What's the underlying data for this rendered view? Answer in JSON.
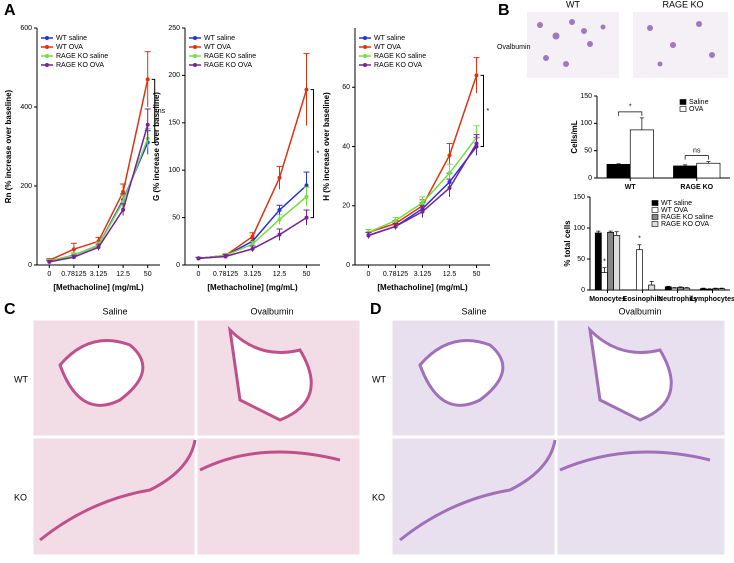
{
  "panel_labels": [
    "A",
    "B",
    "C",
    "D"
  ],
  "micrograph_labels": {
    "b_columns": [
      "WT",
      "RAGE KO"
    ],
    "b_row": "Ovalbumin",
    "c_columns": [
      "Saline",
      "Ovalbumin"
    ],
    "c_rows": [
      "WT",
      "KO"
    ],
    "d_columns": [
      "Saline",
      "Ovalbumin"
    ],
    "d_rows": [
      "WT",
      "KO"
    ]
  },
  "chart_data": [
    {
      "type": "line",
      "y_label": "Rn (% increase over baseline)",
      "x_label": "[Methacholine] (mg/mL)",
      "categories": [
        "0",
        "0.78125",
        "3.125",
        "12.5",
        "50"
      ],
      "ylim": [
        0,
        600
      ],
      "yticks": [
        0,
        200,
        400,
        600
      ],
      "series": [
        {
          "name": "WT saline",
          "color": "#2233dd",
          "values": [
            10,
            25,
            50,
            165,
            310
          ],
          "errors": [
            3,
            5,
            8,
            15,
            30
          ]
        },
        {
          "name": "WT OVA",
          "color": "#dd3311",
          "values": [
            12,
            40,
            60,
            185,
            470
          ],
          "errors": [
            4,
            15,
            10,
            20,
            70
          ]
        },
        {
          "name": "RAGE KO saline",
          "color": "#77dd44",
          "values": [
            10,
            25,
            50,
            160,
            320
          ],
          "errors": [
            3,
            5,
            8,
            15,
            25
          ]
        },
        {
          "name": "RAGE KO OVA",
          "color": "#772299",
          "values": [
            8,
            20,
            45,
            140,
            355
          ],
          "errors": [
            3,
            5,
            8,
            15,
            40
          ]
        }
      ],
      "annotations": [
        "ns"
      ]
    },
    {
      "type": "line",
      "y_label": "G (% increase over baseline)",
      "x_label": "[Methacholine] (mg/mL)",
      "categories": [
        "0",
        "0.78125",
        "3.125",
        "12.5",
        "50"
      ],
      "ylim": [
        0,
        250
      ],
      "yticks": [
        0,
        50,
        100,
        150,
        200,
        250
      ],
      "series": [
        {
          "name": "WT saline",
          "color": "#2233dd",
          "values": [
            7,
            10,
            25,
            58,
            84
          ],
          "errors": [
            1,
            2,
            3,
            5,
            14
          ]
        },
        {
          "name": "WT OVA",
          "color": "#dd3311",
          "values": [
            7,
            10,
            30,
            92,
            185
          ],
          "errors": [
            1,
            2,
            4,
            12,
            38
          ]
        },
        {
          "name": "RAGE KO saline",
          "color": "#77dd44",
          "values": [
            7,
            10,
            22,
            48,
            72
          ],
          "errors": [
            1,
            2,
            3,
            5,
            10
          ]
        },
        {
          "name": "RAGE KO OVA",
          "color": "#772299",
          "values": [
            7,
            9,
            17,
            32,
            50
          ],
          "errors": [
            1,
            2,
            3,
            6,
            8
          ]
        }
      ],
      "annotations": [
        "*"
      ]
    },
    {
      "type": "line",
      "y_label": "H (% increase over baseline)",
      "x_label": "[Methacholine] (mg/mL)",
      "categories": [
        "0",
        "0.78125",
        "3.125",
        "12.5",
        "50"
      ],
      "ylim": [
        0,
        80
      ],
      "yticks": [
        0,
        20,
        40,
        60
      ],
      "series": [
        {
          "name": "WT saline",
          "color": "#2233dd",
          "values": [
            10,
            13,
            19,
            28,
            40
          ],
          "errors": [
            1,
            1,
            2,
            3,
            3
          ]
        },
        {
          "name": "WT OVA",
          "color": "#dd3311",
          "values": [
            11,
            14,
            20,
            37,
            64
          ],
          "errors": [
            1,
            1,
            2,
            4,
            6
          ]
        },
        {
          "name": "RAGE KO saline",
          "color": "#77dd44",
          "values": [
            11,
            15,
            21,
            31,
            43
          ],
          "errors": [
            1,
            1,
            2,
            3,
            4
          ]
        },
        {
          "name": "RAGE KO OVA",
          "color": "#772299",
          "values": [
            10,
            13,
            18,
            26,
            41
          ],
          "errors": [
            1,
            1,
            2,
            3,
            3
          ]
        }
      ],
      "annotations": [
        "*"
      ]
    },
    {
      "type": "bar",
      "y_label": "Cells/mL",
      "categories": [
        "WT",
        "RAGE KO"
      ],
      "ylim": [
        0,
        150
      ],
      "yticks": [
        0,
        50,
        100,
        150
      ],
      "series": [
        {
          "name": "Saline",
          "color": "#000000",
          "values": [
            25,
            22
          ],
          "errors": [
            1,
            2
          ]
        },
        {
          "name": "OVA",
          "color": "#ffffff",
          "values": [
            88,
            27
          ],
          "errors": [
            22,
            3
          ]
        }
      ],
      "annotations": [
        "*",
        "ns"
      ]
    },
    {
      "type": "bar",
      "y_label": "% total cells",
      "categories": [
        "Monocytes",
        "Eosinophils",
        "Neutrophils",
        "Lymphocytes"
      ],
      "ylim": [
        0,
        150
      ],
      "yticks": [
        0,
        50,
        100,
        150
      ],
      "series": [
        {
          "name": "WT saline",
          "color": "#000000",
          "values": [
            92,
            0,
            5,
            2
          ],
          "errors": [
            3,
            0,
            1,
            1
          ]
        },
        {
          "name": "WT OVA",
          "color": "#ffffff",
          "values": [
            28,
            65,
            3,
            1
          ],
          "errors": [
            8,
            8,
            1,
            1
          ]
        },
        {
          "name": "RAGE KO saline",
          "color": "#888888",
          "values": [
            93,
            0,
            4,
            2
          ],
          "errors": [
            2,
            0,
            1,
            1
          ]
        },
        {
          "name": "RAGE KO OVA",
          "color": "#dddddd",
          "values": [
            88,
            8,
            3,
            2
          ],
          "errors": [
            6,
            6,
            1,
            1
          ]
        }
      ],
      "annotations": [
        "*",
        "*"
      ]
    }
  ]
}
